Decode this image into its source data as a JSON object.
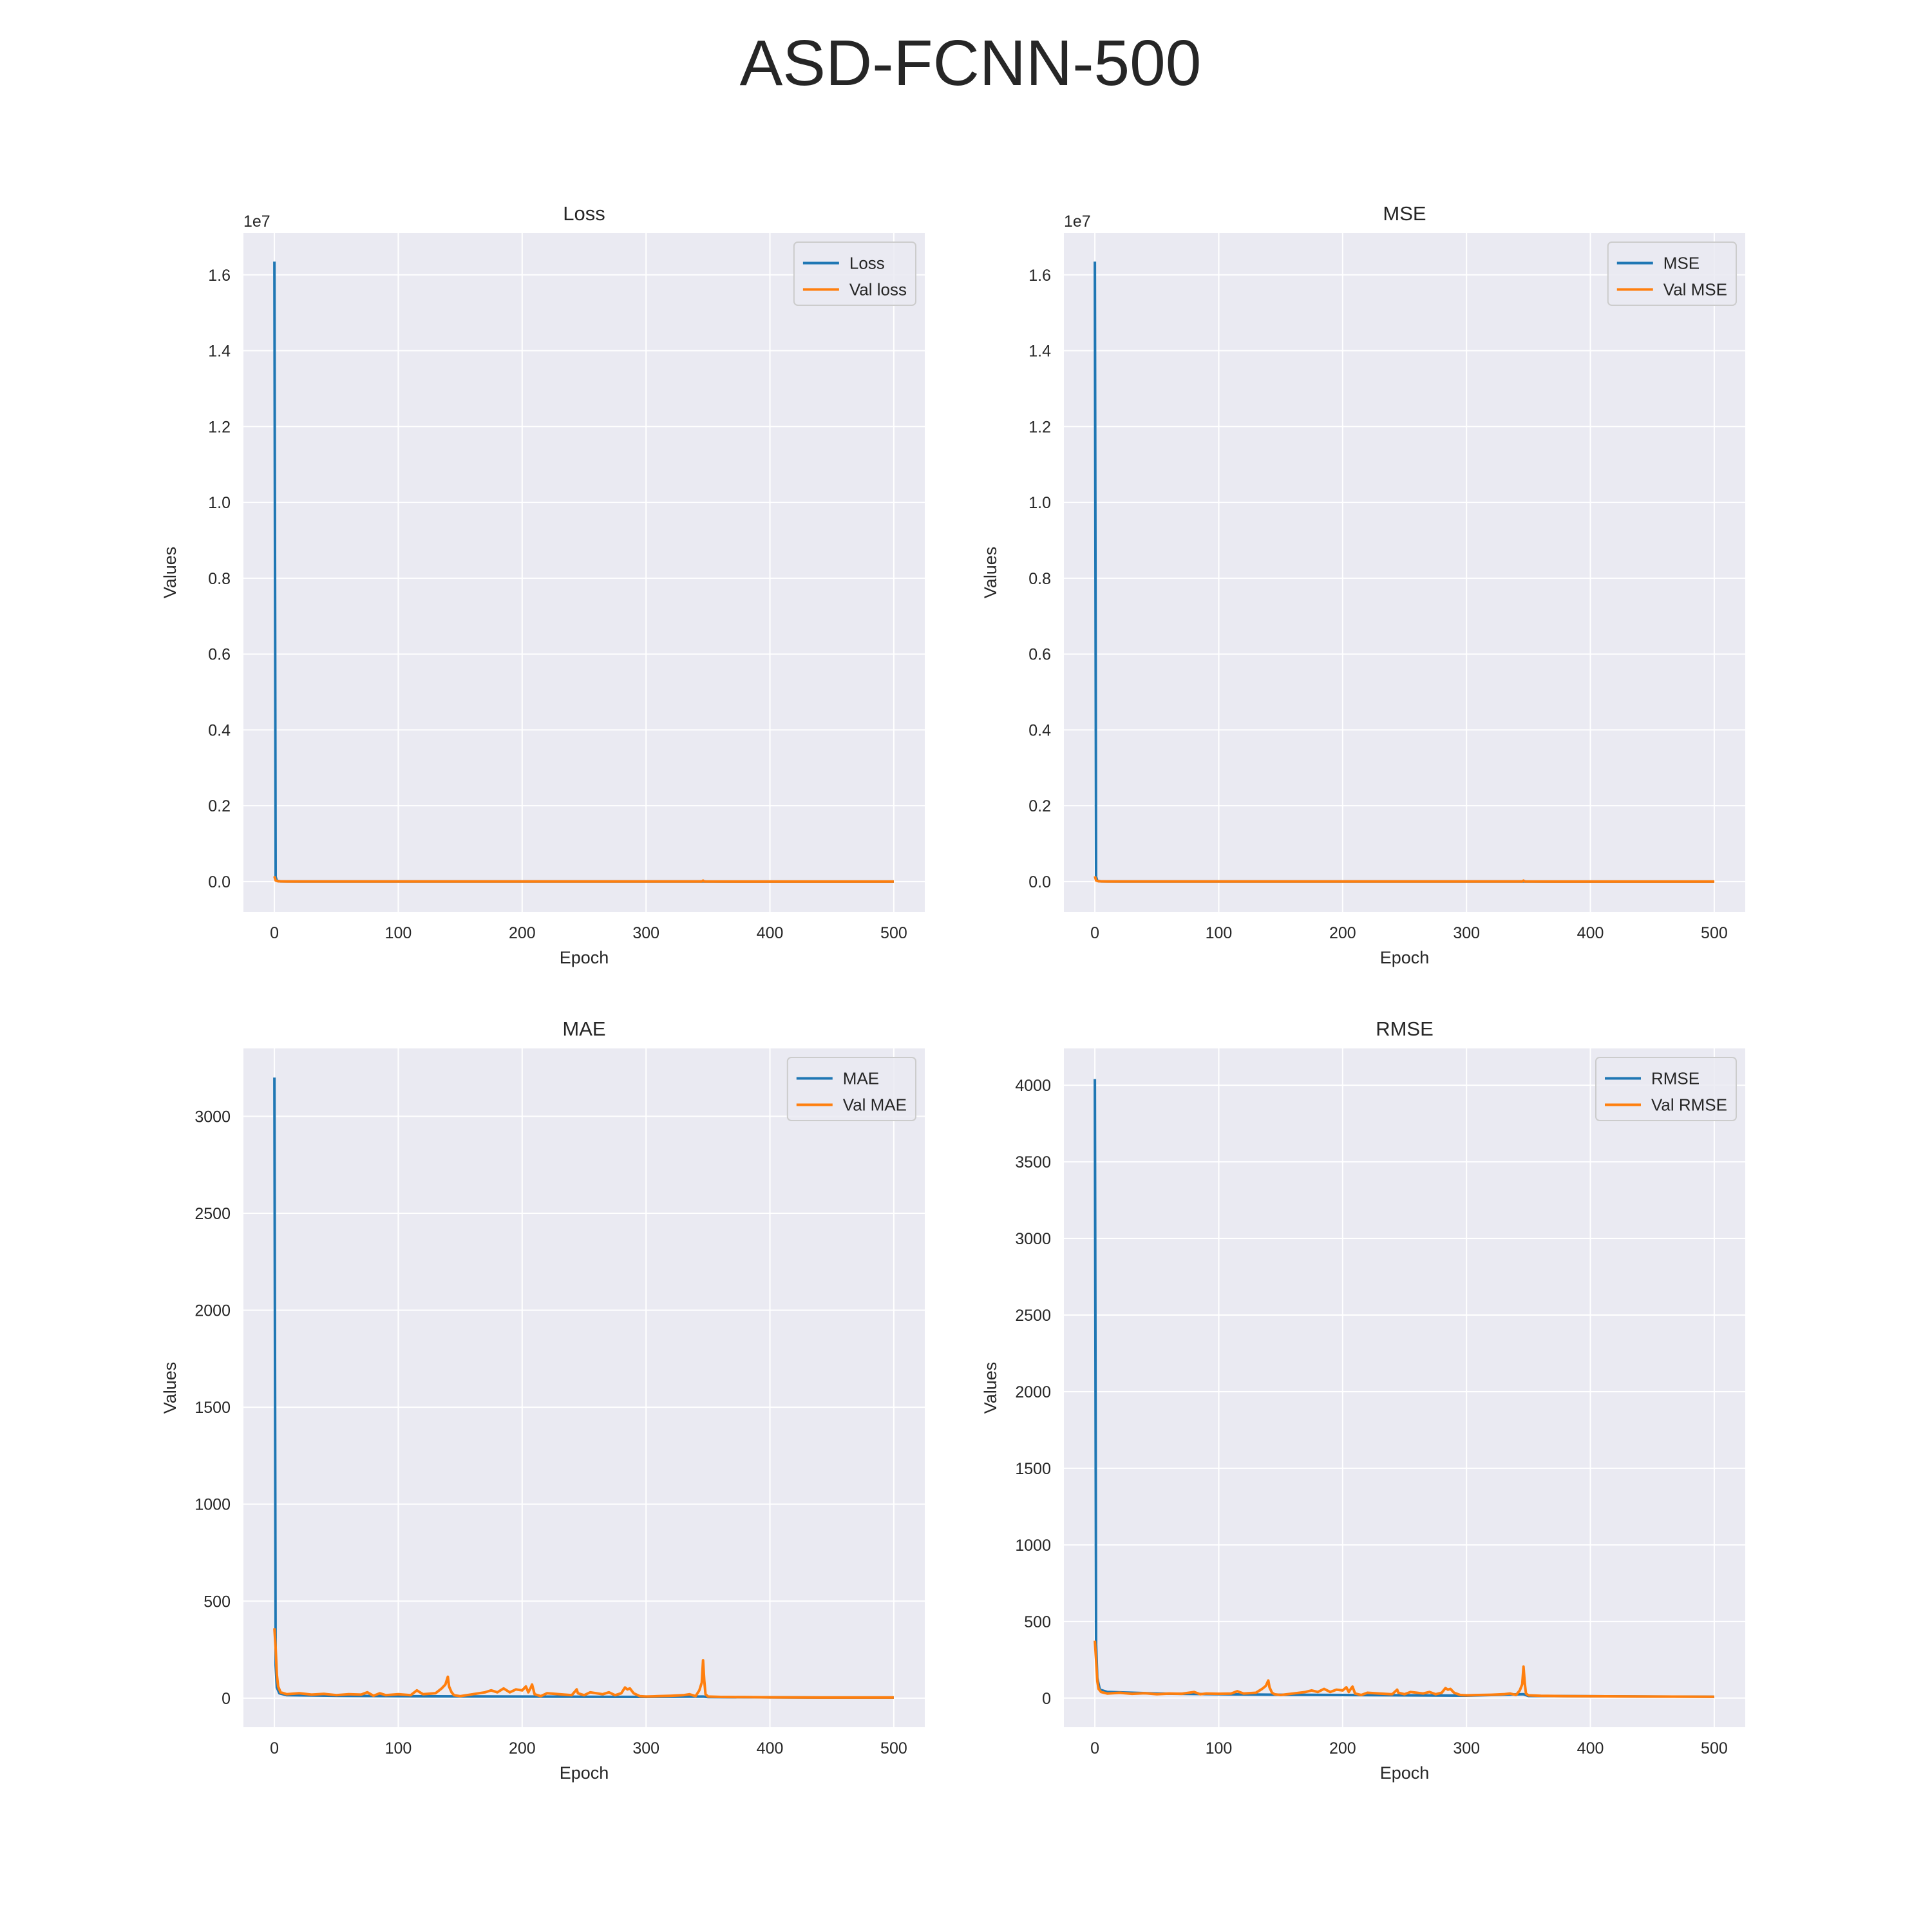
{
  "figure": {
    "title": "ASD-FCNN-500"
  },
  "colors": {
    "train": "#1f77b4",
    "val": "#ff7f0e",
    "axes_bg": "#eaeaf2",
    "grid": "#ffffff"
  },
  "chart_data": [
    {
      "type": "line",
      "title": "Loss",
      "xlabel": "Epoch",
      "ylabel": "Values",
      "y_offset_label": "1e7",
      "xlim": [
        -25,
        525
      ],
      "ylim": [
        -0.8,
        17.1
      ],
      "y_scale_note": "values in units of 1e7",
      "xticks": [
        0,
        100,
        200,
        300,
        400,
        500
      ],
      "xtick_labels": [
        "0",
        "100",
        "200",
        "300",
        "400",
        "500"
      ],
      "yticks": [
        0,
        2,
        4,
        6,
        8,
        10,
        12,
        14,
        16
      ],
      "ytick_labels": [
        "0.0",
        "0.2",
        "0.4",
        "0.6",
        "0.8",
        "1.0",
        "1.2",
        "1.4",
        "1.6"
      ],
      "legend_position": "upper right",
      "grid": true,
      "series": [
        {
          "name": "Loss",
          "color_key": "train",
          "points": [
            [
              0,
              16.35
            ],
            [
              1,
              0.12
            ],
            [
              2,
              0.02
            ],
            [
              5,
              0.005
            ],
            [
              20,
              0.002
            ],
            [
              100,
              0.001
            ],
            [
              200,
              0.001
            ],
            [
              300,
              0.001
            ],
            [
              346,
              0.004
            ],
            [
              348,
              0.001
            ],
            [
              400,
              0.0005
            ],
            [
              500,
              0.0004
            ]
          ]
        },
        {
          "name": "Val loss",
          "color_key": "val",
          "points": [
            [
              0,
              0.14
            ],
            [
              1,
              0.03
            ],
            [
              3,
              0.006
            ],
            [
              10,
              0.003
            ],
            [
              50,
              0.002
            ],
            [
              140,
              0.003
            ],
            [
              141,
              0.001
            ],
            [
              200,
              0.001
            ],
            [
              300,
              0.001
            ],
            [
              345,
              0.001
            ],
            [
              346,
              0.025
            ],
            [
              347,
              0.001
            ],
            [
              400,
              0.0005
            ],
            [
              500,
              0.0004
            ]
          ]
        }
      ]
    },
    {
      "type": "line",
      "title": "MSE",
      "xlabel": "Epoch",
      "ylabel": "Values",
      "y_offset_label": "1e7",
      "xlim": [
        -25,
        525
      ],
      "ylim": [
        -0.8,
        17.1
      ],
      "y_scale_note": "values in units of 1e7",
      "xticks": [
        0,
        100,
        200,
        300,
        400,
        500
      ],
      "xtick_labels": [
        "0",
        "100",
        "200",
        "300",
        "400",
        "500"
      ],
      "yticks": [
        0,
        2,
        4,
        6,
        8,
        10,
        12,
        14,
        16
      ],
      "ytick_labels": [
        "0.0",
        "0.2",
        "0.4",
        "0.6",
        "0.8",
        "1.0",
        "1.2",
        "1.4",
        "1.6"
      ],
      "legend_position": "upper right",
      "grid": true,
      "series": [
        {
          "name": "MSE",
          "color_key": "train",
          "points": [
            [
              0,
              16.35
            ],
            [
              1,
              0.12
            ],
            [
              2,
              0.02
            ],
            [
              5,
              0.005
            ],
            [
              20,
              0.002
            ],
            [
              100,
              0.001
            ],
            [
              200,
              0.001
            ],
            [
              300,
              0.001
            ],
            [
              346,
              0.004
            ],
            [
              348,
              0.001
            ],
            [
              400,
              0.0005
            ],
            [
              500,
              0.0004
            ]
          ]
        },
        {
          "name": "Val MSE",
          "color_key": "val",
          "points": [
            [
              0,
              0.14
            ],
            [
              1,
              0.03
            ],
            [
              3,
              0.006
            ],
            [
              10,
              0.003
            ],
            [
              50,
              0.002
            ],
            [
              140,
              0.003
            ],
            [
              141,
              0.001
            ],
            [
              200,
              0.001
            ],
            [
              300,
              0.001
            ],
            [
              345,
              0.001
            ],
            [
              346,
              0.025
            ],
            [
              347,
              0.001
            ],
            [
              400,
              0.0005
            ],
            [
              500,
              0.0004
            ]
          ]
        }
      ]
    },
    {
      "type": "line",
      "title": "MAE",
      "xlabel": "Epoch",
      "ylabel": "Values",
      "y_offset_label": "",
      "xlim": [
        -25,
        525
      ],
      "ylim": [
        -150,
        3350
      ],
      "xticks": [
        0,
        100,
        200,
        300,
        400,
        500
      ],
      "xtick_labels": [
        "0",
        "100",
        "200",
        "300",
        "400",
        "500"
      ],
      "yticks": [
        0,
        500,
        1000,
        1500,
        2000,
        2500,
        3000
      ],
      "ytick_labels": [
        "0",
        "500",
        "1000",
        "1500",
        "2000",
        "2500",
        "3000"
      ],
      "legend_position": "upper right",
      "grid": true,
      "series": [
        {
          "name": "MAE",
          "color_key": "train",
          "points": [
            [
              0,
              3200
            ],
            [
              1,
              170
            ],
            [
              2,
              55
            ],
            [
              4,
              25
            ],
            [
              10,
              15
            ],
            [
              50,
              12
            ],
            [
              100,
              10
            ],
            [
              150,
              9
            ],
            [
              200,
              8
            ],
            [
              250,
              7
            ],
            [
              300,
              6
            ],
            [
              346,
              8
            ],
            [
              350,
              5
            ],
            [
              400,
              4
            ],
            [
              450,
              3
            ],
            [
              500,
              3
            ]
          ]
        },
        {
          "name": "Val MAE",
          "color_key": "val",
          "points": [
            [
              0,
              360
            ],
            [
              1,
              260
            ],
            [
              2,
              120
            ],
            [
              3,
              60
            ],
            [
              5,
              30
            ],
            [
              10,
              20
            ],
            [
              20,
              25
            ],
            [
              30,
              18
            ],
            [
              40,
              22
            ],
            [
              50,
              15
            ],
            [
              60,
              20
            ],
            [
              70,
              18
            ],
            [
              75,
              30
            ],
            [
              80,
              12
            ],
            [
              85,
              25
            ],
            [
              90,
              15
            ],
            [
              100,
              20
            ],
            [
              110,
              15
            ],
            [
              115,
              40
            ],
            [
              120,
              20
            ],
            [
              130,
              25
            ],
            [
              135,
              50
            ],
            [
              138,
              70
            ],
            [
              140,
              110
            ],
            [
              141,
              60
            ],
            [
              143,
              30
            ],
            [
              145,
              15
            ],
            [
              150,
              10
            ],
            [
              160,
              20
            ],
            [
              170,
              30
            ],
            [
              175,
              40
            ],
            [
              180,
              30
            ],
            [
              185,
              50
            ],
            [
              190,
              30
            ],
            [
              195,
              45
            ],
            [
              200,
              40
            ],
            [
              203,
              60
            ],
            [
              205,
              30
            ],
            [
              207,
              55
            ],
            [
              208,
              70
            ],
            [
              210,
              20
            ],
            [
              215,
              10
            ],
            [
              220,
              25
            ],
            [
              230,
              20
            ],
            [
              240,
              15
            ],
            [
              244,
              45
            ],
            [
              245,
              25
            ],
            [
              250,
              15
            ],
            [
              255,
              30
            ],
            [
              260,
              25
            ],
            [
              265,
              20
            ],
            [
              270,
              30
            ],
            [
              275,
              15
            ],
            [
              280,
              25
            ],
            [
              283,
              55
            ],
            [
              285,
              45
            ],
            [
              287,
              50
            ],
            [
              290,
              25
            ],
            [
              295,
              10
            ],
            [
              300,
              8
            ],
            [
              310,
              10
            ],
            [
              320,
              12
            ],
            [
              330,
              15
            ],
            [
              335,
              20
            ],
            [
              340,
              10
            ],
            [
              343,
              40
            ],
            [
              345,
              80
            ],
            [
              346,
              195
            ],
            [
              347,
              90
            ],
            [
              348,
              20
            ],
            [
              350,
              8
            ],
            [
              360,
              6
            ],
            [
              380,
              5
            ],
            [
              400,
              4
            ],
            [
              450,
              3
            ],
            [
              500,
              3
            ]
          ]
        }
      ]
    },
    {
      "type": "line",
      "title": "RMSE",
      "xlabel": "Epoch",
      "ylabel": "Values",
      "y_offset_label": "",
      "xlim": [
        -25,
        525
      ],
      "ylim": [
        -190,
        4240
      ],
      "xticks": [
        0,
        100,
        200,
        300,
        400,
        500
      ],
      "xtick_labels": [
        "0",
        "100",
        "200",
        "300",
        "400",
        "500"
      ],
      "yticks": [
        0,
        500,
        1000,
        1500,
        2000,
        2500,
        3000,
        3500,
        4000
      ],
      "ytick_labels": [
        "0",
        "500",
        "1000",
        "1500",
        "2000",
        "2500",
        "3000",
        "3500",
        "4000"
      ],
      "legend_position": "upper right",
      "grid": true,
      "series": [
        {
          "name": "RMSE",
          "color_key": "train",
          "points": [
            [
              0,
              4040
            ],
            [
              1,
              350
            ],
            [
              2,
              130
            ],
            [
              4,
              55
            ],
            [
              10,
              40
            ],
            [
              50,
              30
            ],
            [
              100,
              25
            ],
            [
              150,
              22
            ],
            [
              200,
              20
            ],
            [
              250,
              18
            ],
            [
              300,
              16
            ],
            [
              346,
              25
            ],
            [
              350,
              14
            ],
            [
              400,
              12
            ],
            [
              450,
              10
            ],
            [
              500,
              9
            ]
          ]
        },
        {
          "name": "Val RMSE",
          "color_key": "val",
          "points": [
            [
              0,
              375
            ],
            [
              1,
              250
            ],
            [
              2,
              110
            ],
            [
              3,
              60
            ],
            [
              5,
              40
            ],
            [
              10,
              30
            ],
            [
              20,
              35
            ],
            [
              30,
              28
            ],
            [
              40,
              32
            ],
            [
              50,
              25
            ],
            [
              60,
              30
            ],
            [
              70,
              28
            ],
            [
              80,
              40
            ],
            [
              85,
              25
            ],
            [
              90,
              30
            ],
            [
              100,
              28
            ],
            [
              110,
              30
            ],
            [
              115,
              45
            ],
            [
              120,
              30
            ],
            [
              130,
              35
            ],
            [
              135,
              60
            ],
            [
              138,
              80
            ],
            [
              140,
              115
            ],
            [
              141,
              70
            ],
            [
              143,
              35
            ],
            [
              145,
              25
            ],
            [
              150,
              20
            ],
            [
              160,
              30
            ],
            [
              170,
              40
            ],
            [
              175,
              50
            ],
            [
              180,
              40
            ],
            [
              185,
              60
            ],
            [
              190,
              40
            ],
            [
              195,
              55
            ],
            [
              200,
              50
            ],
            [
              203,
              70
            ],
            [
              205,
              40
            ],
            [
              207,
              65
            ],
            [
              208,
              75
            ],
            [
              210,
              30
            ],
            [
              215,
              20
            ],
            [
              220,
              35
            ],
            [
              230,
              30
            ],
            [
              240,
              25
            ],
            [
              244,
              55
            ],
            [
              245,
              35
            ],
            [
              250,
              25
            ],
            [
              255,
              40
            ],
            [
              260,
              35
            ],
            [
              265,
              30
            ],
            [
              270,
              40
            ],
            [
              275,
              25
            ],
            [
              280,
              35
            ],
            [
              283,
              65
            ],
            [
              285,
              55
            ],
            [
              287,
              60
            ],
            [
              290,
              35
            ],
            [
              295,
              20
            ],
            [
              300,
              18
            ],
            [
              310,
              20
            ],
            [
              320,
              22
            ],
            [
              330,
              25
            ],
            [
              335,
              30
            ],
            [
              340,
              20
            ],
            [
              343,
              50
            ],
            [
              345,
              90
            ],
            [
              346,
              205
            ],
            [
              347,
              100
            ],
            [
              348,
              30
            ],
            [
              350,
              18
            ],
            [
              360,
              15
            ],
            [
              380,
              13
            ],
            [
              400,
              12
            ],
            [
              450,
              10
            ],
            [
              500,
              9
            ]
          ]
        }
      ]
    }
  ]
}
